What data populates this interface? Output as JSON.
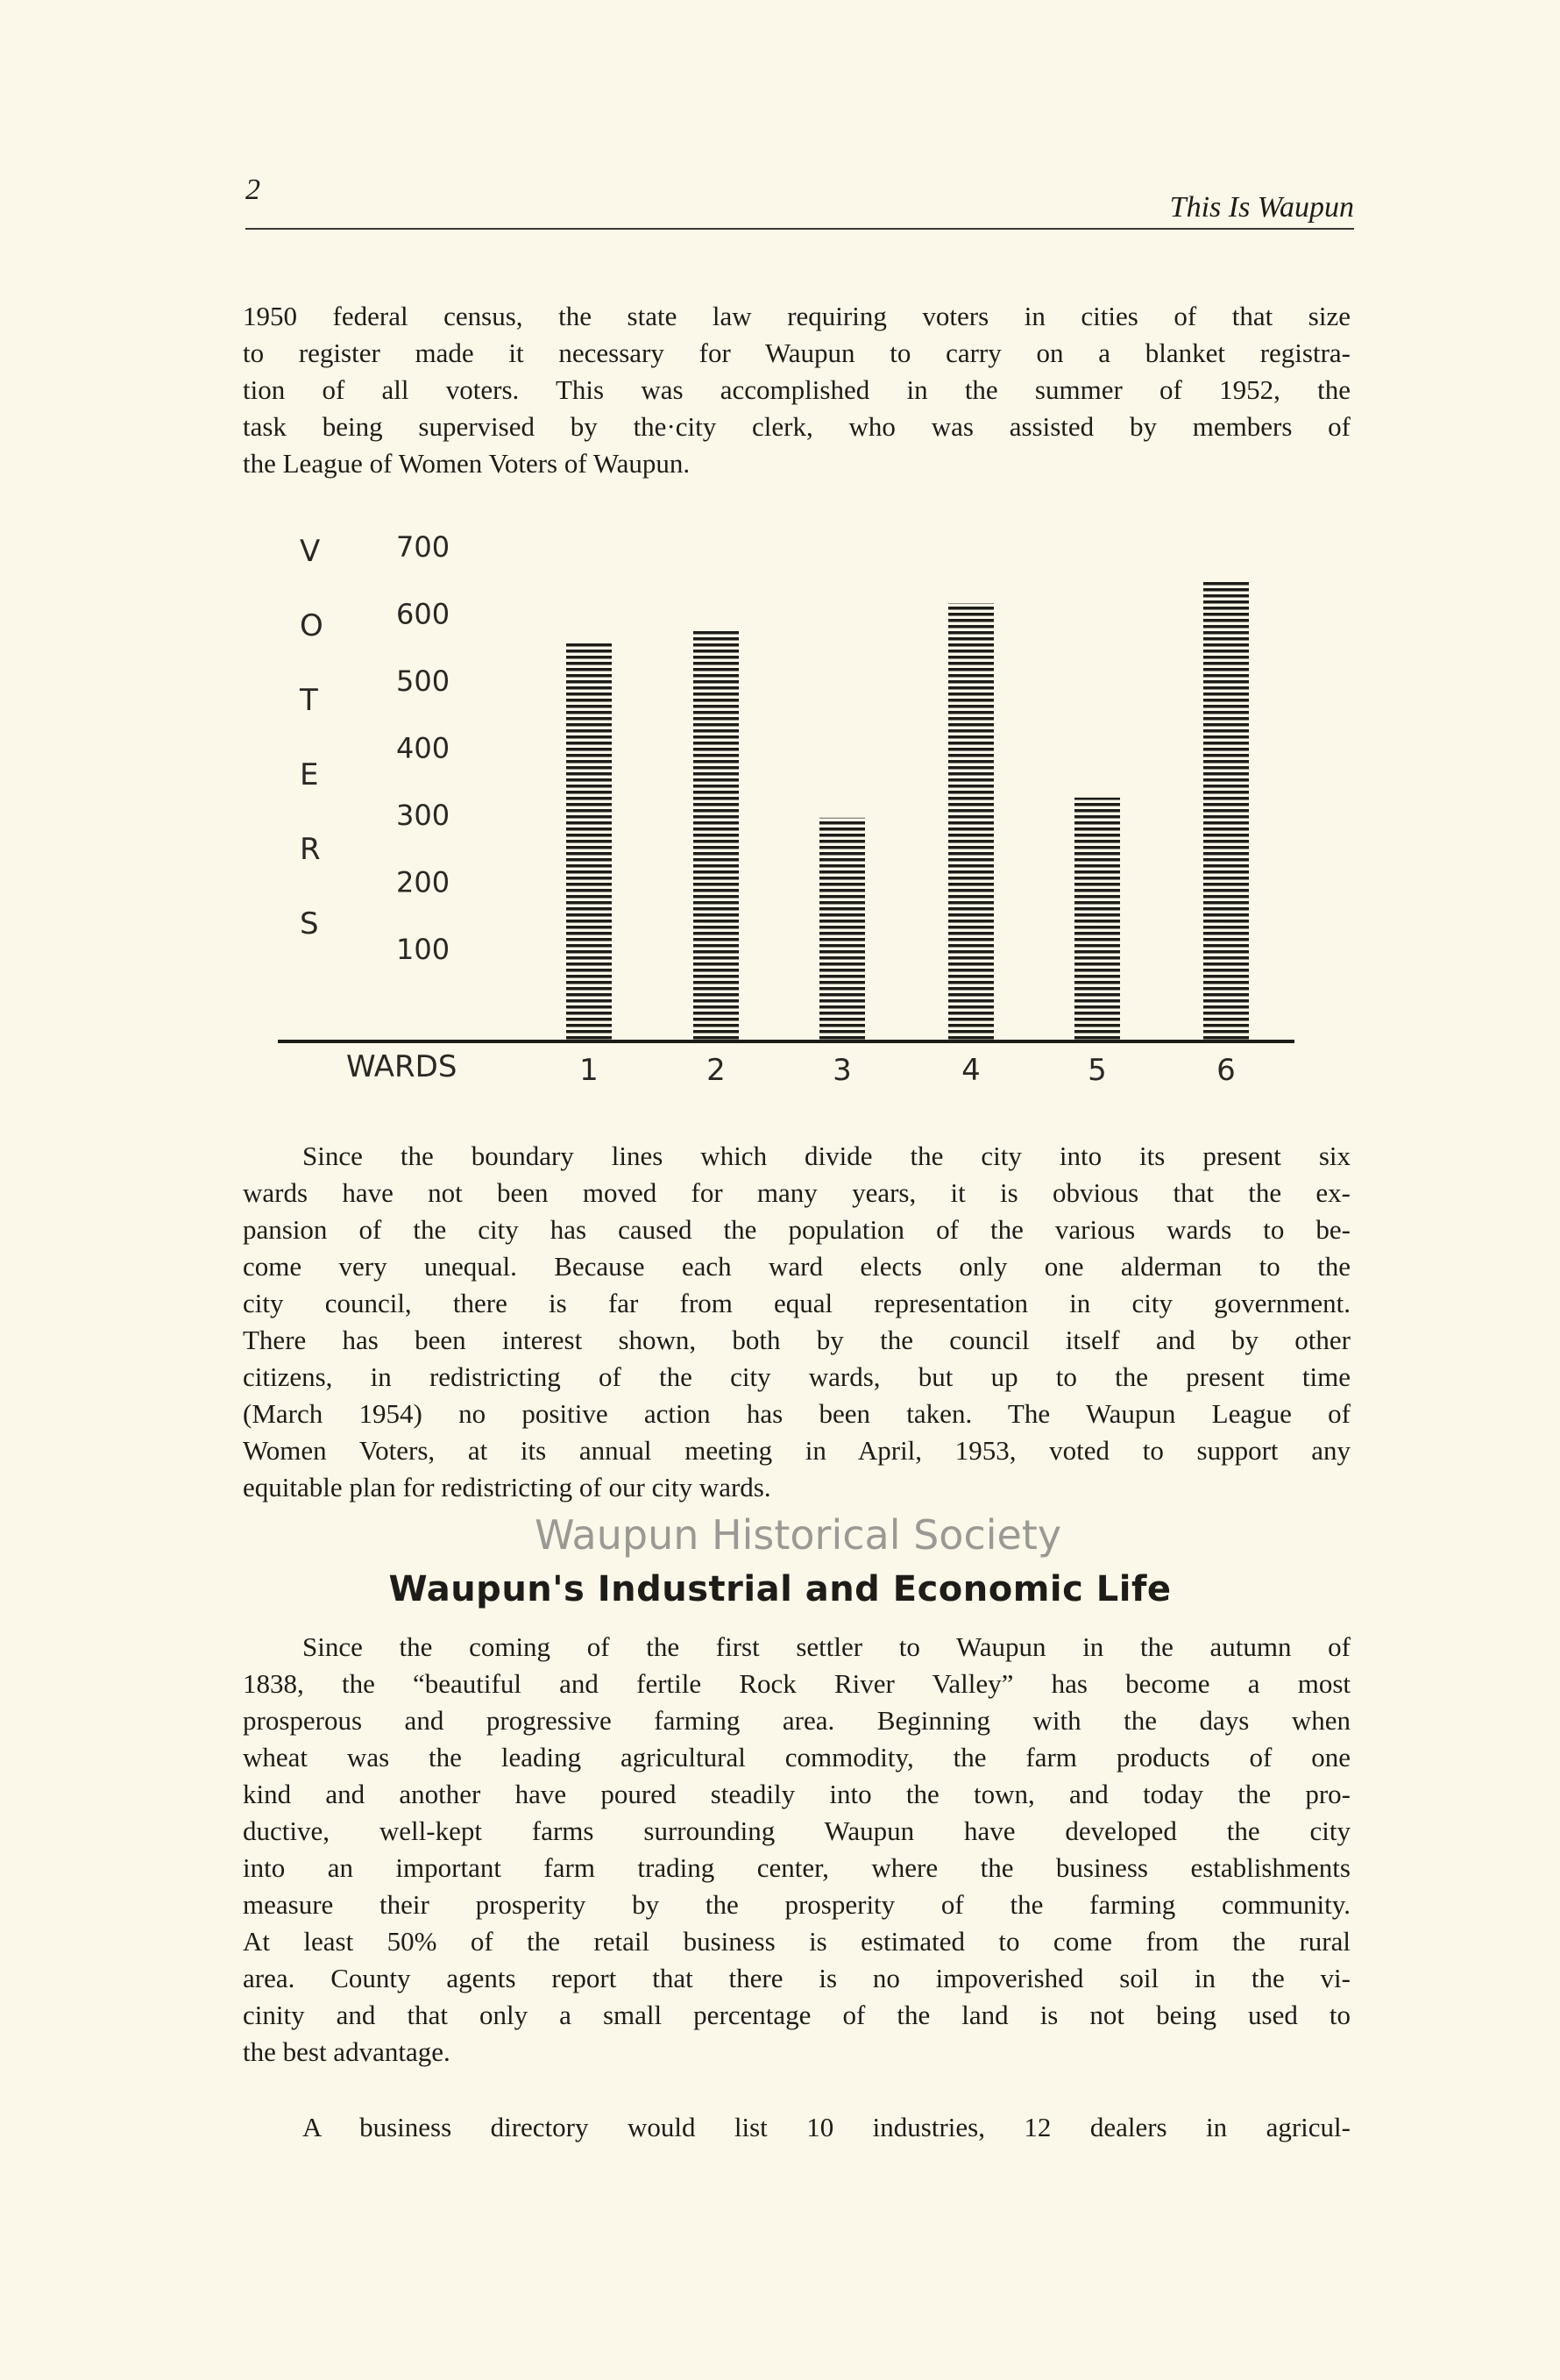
{
  "header": {
    "page_number": "2",
    "running_title": "This Is Waupun"
  },
  "paragraph1": [
    "1950 federal census, the state law requiring voters in cities of that size",
    "to register made it necessary for Waupun to carry on a blanket registra-",
    "tion of all voters. This was accomplished in the summer of 1952, the",
    "task being supervised by the·city clerk, who was assisted by members of",
    "the League of Women Voters of Waupun."
  ],
  "chart_data": {
    "type": "bar",
    "title": "",
    "xlabel": "WARDS",
    "ylabel": "VOTERS",
    "ylabel_letters": [
      "V",
      "O",
      "T",
      "E",
      "R",
      "S"
    ],
    "categories": [
      "1",
      "2",
      "3",
      "4",
      "5",
      "6"
    ],
    "values": [
      555,
      575,
      295,
      615,
      325,
      650
    ],
    "yticks": [
      "100",
      "200",
      "300",
      "400",
      "500",
      "600",
      "700"
    ],
    "ylim": [
      0,
      700
    ],
    "grid": false,
    "bar_fill": "horizontal hatching",
    "bar_color": "#1e1c18"
  },
  "paragraph2": [
    "Since the boundary lines which divide the city into its present six",
    "wards have not been moved for many years, it is obvious that the ex-",
    "pansion of the city has caused the population of the various wards to be-",
    "come very unequal. Because each ward elects only one alderman to the",
    "city council, there is far from equal representation in city government.",
    "There has been interest shown, both by the council itself and by other",
    "citizens, in redistricting of the city wards, but up to the present time",
    "(March 1954) no positive action has been taken. The Waupun League of",
    "Women Voters, at its annual meeting in April, 1953, voted to support any",
    "equitable plan for redistricting of our city wards."
  ],
  "section_heading": "Waupun's Industrial and Economic Life",
  "paragraph3": [
    "Since the coming of the first settler to Waupun in the autumn of",
    "1838, the “beautiful and fertile Rock River Valley” has become a most",
    "prosperous and progressive farming area. Beginning with the days when",
    "wheat was the leading agricultural commodity, the farm products of one",
    "kind and another have poured steadily into the town, and today the pro-",
    "ductive, well-kept farms surrounding Waupun have developed the city",
    "into an important farm trading center, where the business establishments",
    "measure their prosperity by the prosperity of the farming community.",
    "At least 50% of the retail business is estimated to come from the rural",
    "area. County agents report that there is no impoverished soil in the vi-",
    "cinity and that only a small percentage of the land is not being used to",
    "the best advantage."
  ],
  "paragraph4": [
    "A business directory would list 10 industries, 12 dealers in agricul-"
  ],
  "watermark": "Waupun Historical Society",
  "colors": {
    "paper": "#fbf8ea",
    "ink": "#1e1c18"
  }
}
